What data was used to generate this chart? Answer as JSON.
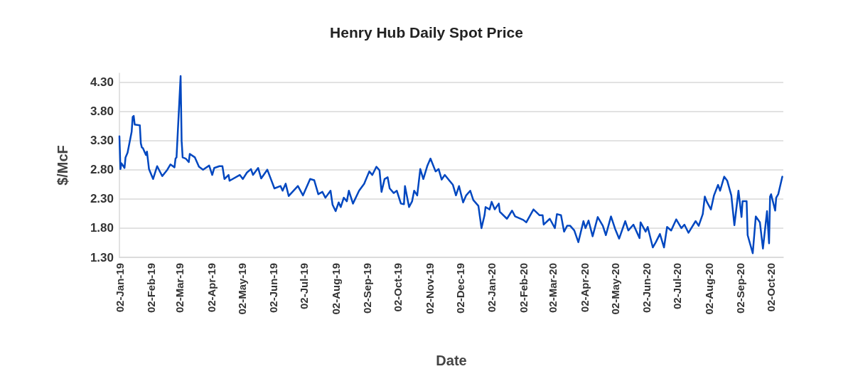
{
  "chart_data": {
    "type": "line",
    "title": "Henry Hub Daily Spot Price",
    "xlabel": "Date",
    "ylabel": "$/McF",
    "x": [
      "2019-01-02",
      "2019-01-03",
      "2019-01-04",
      "2019-01-07",
      "2019-01-08",
      "2019-01-10",
      "2019-01-14",
      "2019-01-15",
      "2019-01-16",
      "2019-01-17",
      "2019-01-22",
      "2019-01-23",
      "2019-01-24",
      "2019-01-25",
      "2019-01-28",
      "2019-01-29",
      "2019-01-31",
      "2019-02-04",
      "2019-02-08",
      "2019-02-13",
      "2019-02-18",
      "2019-02-21",
      "2019-02-25",
      "2019-02-26",
      "2019-02-27",
      "2019-03-03",
      "2019-03-04",
      "2019-03-05",
      "2019-03-08",
      "2019-03-11",
      "2019-03-12",
      "2019-03-17",
      "2019-03-21",
      "2019-03-25",
      "2019-03-31",
      "2019-04-03",
      "2019-04-05",
      "2019-04-10",
      "2019-04-13",
      "2019-04-15",
      "2019-04-19",
      "2019-04-20",
      "2019-04-30",
      "2019-05-03",
      "2019-05-07",
      "2019-05-11",
      "2019-05-13",
      "2019-05-18",
      "2019-05-21",
      "2019-05-27",
      "2019-06-03",
      "2019-06-09",
      "2019-06-11",
      "2019-06-14",
      "2019-06-17",
      "2019-06-26",
      "2019-07-01",
      "2019-07-08",
      "2019-07-12",
      "2019-07-16",
      "2019-07-20",
      "2019-07-23",
      "2019-07-28",
      "2019-07-30",
      "2019-08-02",
      "2019-08-05",
      "2019-08-07",
      "2019-08-10",
      "2019-08-13",
      "2019-08-15",
      "2019-08-19",
      "2019-08-25",
      "2019-08-30",
      "2019-09-04",
      "2019-09-07",
      "2019-09-11",
      "2019-09-14",
      "2019-09-16",
      "2019-09-19",
      "2019-09-22",
      "2019-09-24",
      "2019-09-28",
      "2019-10-01",
      "2019-10-05",
      "2019-10-08",
      "2019-10-09",
      "2019-10-13",
      "2019-10-16",
      "2019-10-18",
      "2019-10-21",
      "2019-10-24",
      "2019-10-27",
      "2019-10-31",
      "2019-11-03",
      "2019-11-08",
      "2019-11-11",
      "2019-11-14",
      "2019-11-17",
      "2019-11-25",
      "2019-11-28",
      "2019-12-01",
      "2019-12-05",
      "2019-12-08",
      "2019-12-12",
      "2019-12-15",
      "2019-12-20",
      "2019-12-23",
      "2019-12-26",
      "2019-12-27",
      "2019-12-31",
      "2020-01-02",
      "2020-01-05",
      "2020-01-09",
      "2020-01-10",
      "2020-01-17",
      "2020-01-22",
      "2020-01-25",
      "2020-02-02",
      "2020-02-05",
      "2020-02-12",
      "2020-02-18",
      "2020-02-21",
      "2020-02-22",
      "2020-02-28",
      "2020-03-04",
      "2020-03-06",
      "2020-03-10",
      "2020-03-13",
      "2020-03-16",
      "2020-03-19",
      "2020-03-23",
      "2020-03-27",
      "2020-04-01",
      "2020-04-03",
      "2020-04-06",
      "2020-04-10",
      "2020-04-15",
      "2020-04-20",
      "2020-04-23",
      "2020-04-28",
      "2020-05-02",
      "2020-05-06",
      "2020-05-12",
      "2020-05-15",
      "2020-05-20",
      "2020-05-26",
      "2020-05-27",
      "2020-06-01",
      "2020-06-03",
      "2020-06-08",
      "2020-06-11",
      "2020-06-15",
      "2020-06-19",
      "2020-06-22",
      "2020-06-26",
      "2020-07-01",
      "2020-07-06",
      "2020-07-09",
      "2020-07-13",
      "2020-07-20",
      "2020-07-23",
      "2020-07-27",
      "2020-07-29",
      "2020-07-31",
      "2020-08-04",
      "2020-08-07",
      "2020-08-11",
      "2020-08-13",
      "2020-08-17",
      "2020-08-20",
      "2020-08-24",
      "2020-08-27",
      "2020-08-31",
      "2020-09-03",
      "2020-09-04",
      "2020-09-08",
      "2020-09-09",
      "2020-09-14",
      "2020-09-17",
      "2020-09-21",
      "2020-09-24",
      "2020-09-28",
      "2020-09-30",
      "2020-10-01",
      "2020-10-02",
      "2020-10-06",
      "2020-10-07",
      "2020-10-09",
      "2020-10-13"
    ],
    "series": [
      {
        "color": "#0047c0",
        "values": [
          3.37,
          2.81,
          2.91,
          2.83,
          3.01,
          3.09,
          3.45,
          3.7,
          3.72,
          3.57,
          3.56,
          3.25,
          3.18,
          3.17,
          3.05,
          3.11,
          2.81,
          2.64,
          2.86,
          2.69,
          2.8,
          2.89,
          2.84,
          2.99,
          3.01,
          4.4,
          3.29,
          3.01,
          2.99,
          2.93,
          3.07,
          3.01,
          2.85,
          2.8,
          2.87,
          2.71,
          2.83,
          2.86,
          2.86,
          2.64,
          2.71,
          2.61,
          2.71,
          2.64,
          2.75,
          2.81,
          2.71,
          2.83,
          2.65,
          2.8,
          2.48,
          2.52,
          2.44,
          2.56,
          2.35,
          2.52,
          2.36,
          2.64,
          2.62,
          2.38,
          2.42,
          2.32,
          2.44,
          2.2,
          2.09,
          2.24,
          2.16,
          2.32,
          2.26,
          2.44,
          2.22,
          2.44,
          2.56,
          2.77,
          2.71,
          2.85,
          2.79,
          2.42,
          2.64,
          2.67,
          2.48,
          2.4,
          2.44,
          2.22,
          2.21,
          2.52,
          2.16,
          2.26,
          2.44,
          2.36,
          2.81,
          2.64,
          2.87,
          2.99,
          2.77,
          2.81,
          2.63,
          2.71,
          2.54,
          2.36,
          2.52,
          2.24,
          2.36,
          2.44,
          2.28,
          2.18,
          1.8,
          2.02,
          2.16,
          2.12,
          2.25,
          2.12,
          2.22,
          2.08,
          1.96,
          2.1,
          2.0,
          1.94,
          1.9,
          2.12,
          2.02,
          2.02,
          1.86,
          1.96,
          1.8,
          2.04,
          2.02,
          1.74,
          1.84,
          1.84,
          1.76,
          1.56,
          1.92,
          1.8,
          1.93,
          1.66,
          1.99,
          1.84,
          1.68,
          2.0,
          1.79,
          1.62,
          1.92,
          1.76,
          1.86,
          1.63,
          1.9,
          1.74,
          1.82,
          1.47,
          1.56,
          1.7,
          1.47,
          1.82,
          1.76,
          1.95,
          1.8,
          1.86,
          1.72,
          1.92,
          1.84,
          2.04,
          2.34,
          2.25,
          2.12,
          2.36,
          2.54,
          2.44,
          2.68,
          2.61,
          2.36,
          1.85,
          2.44,
          1.99,
          2.26,
          2.26,
          1.68,
          1.37,
          2.0,
          1.9,
          1.45,
          2.09,
          1.54,
          2.34,
          2.38,
          2.1,
          2.32,
          2.38,
          2.68
        ]
      }
    ],
    "xlim": [
      "2019-01-02",
      "2020-10-14"
    ],
    "xticks": [
      {
        "value": "2019-01-02",
        "label": "02-Jan-19"
      },
      {
        "value": "2019-02-02",
        "label": "02-Feb-19"
      },
      {
        "value": "2019-03-02",
        "label": "02-Mar-19"
      },
      {
        "value": "2019-04-02",
        "label": "02-Apr-19"
      },
      {
        "value": "2019-05-02",
        "label": "02-May-19"
      },
      {
        "value": "2019-06-02",
        "label": "02-Jun-19"
      },
      {
        "value": "2019-07-02",
        "label": "02-Jul-19"
      },
      {
        "value": "2019-08-02",
        "label": "02-Aug-19"
      },
      {
        "value": "2019-09-02",
        "label": "02-Sep-19"
      },
      {
        "value": "2019-10-02",
        "label": "02-Oct-19"
      },
      {
        "value": "2019-11-02",
        "label": "02-Nov-19"
      },
      {
        "value": "2019-12-02",
        "label": "02-Dec-19"
      },
      {
        "value": "2020-01-02",
        "label": "02-Jan-20"
      },
      {
        "value": "2020-02-02",
        "label": "02-Feb-20"
      },
      {
        "value": "2020-03-02",
        "label": "02-Mar-20"
      },
      {
        "value": "2020-04-02",
        "label": "02-Apr-20"
      },
      {
        "value": "2020-05-02",
        "label": "02-May-20"
      },
      {
        "value": "2020-06-02",
        "label": "02-Jun-20"
      },
      {
        "value": "2020-07-02",
        "label": "02-Jul-20"
      },
      {
        "value": "2020-08-02",
        "label": "02-Aug-20"
      },
      {
        "value": "2020-09-02",
        "label": "02-Sep-20"
      },
      {
        "value": "2020-10-02",
        "label": "02-Oct-20"
      }
    ],
    "ylim": [
      1.3,
      4.45
    ],
    "yticks": [
      {
        "value": 1.3,
        "label": "1.30"
      },
      {
        "value": 1.8,
        "label": "1.80"
      },
      {
        "value": 2.3,
        "label": "2.30"
      },
      {
        "value": 2.8,
        "label": "2.80"
      },
      {
        "value": 3.3,
        "label": "3.30"
      },
      {
        "value": 3.8,
        "label": "3.80"
      },
      {
        "value": 4.3,
        "label": "4.30"
      }
    ],
    "grid": "y",
    "marker": "none",
    "line_style": "solid"
  }
}
